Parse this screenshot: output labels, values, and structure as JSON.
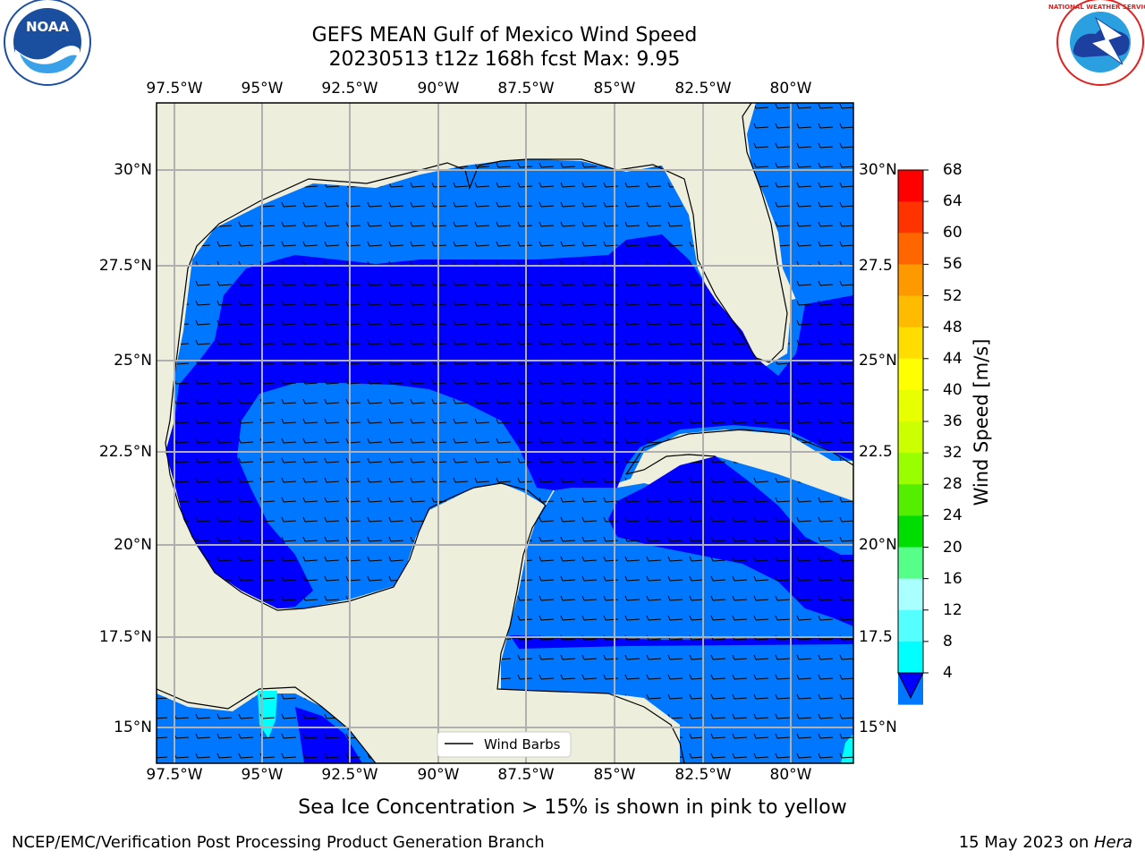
{
  "title_line1": "GEFS MEAN Gulf of Mexico Wind Speed",
  "title_line2": "20230513 t12z 168h fcst   Max: 9.95",
  "lon_labels": [
    "97.5°W",
    "95°W",
    "92.5°W",
    "90°W",
    "87.5°W",
    "85°W",
    "82.5°W",
    "80°W"
  ],
  "lat_labels": [
    "30°N",
    "27.5°N",
    "25°N",
    "22.5°N",
    "20°N",
    "17.5°N",
    "15°N"
  ],
  "lat_labels_right": [
    "30°N",
    "27.5",
    "25°N",
    "22.5",
    "20°N",
    "17.5",
    "15°N"
  ],
  "colorbar": {
    "title": "Wind Speed [m/s]",
    "ticks": [
      "68",
      "64",
      "60",
      "56",
      "52",
      "48",
      "44",
      "40",
      "36",
      "32",
      "28",
      "24",
      "20",
      "16",
      "12",
      "8",
      "4"
    ],
    "colors": [
      "#ff0000",
      "#ff3300",
      "#ff6600",
      "#ff9900",
      "#ffbb00",
      "#ffdd00",
      "#ffff00",
      "#e8ff00",
      "#ccff00",
      "#99ff00",
      "#55ee00",
      "#00dd00",
      "#55ff88",
      "#aaffff",
      "#55ffff",
      "#00ffff",
      "#0077ff"
    ],
    "extend_color": "#0000ff"
  },
  "legend_label": "Wind Barbs",
  "footnote": "Sea Ice Concentration > 15% is shown in pink to yellow",
  "credit": "NCEP/EMC/Verification Post Processing Product Generation Branch",
  "date_text": "15 May 2023 on ",
  "date_host": "Hera",
  "logo_left_text": "NOAA",
  "logo_right_text": "NATIONAL WEATHER SERVICE",
  "colors": {
    "land": "#eeeedd",
    "wind_4_8": "#0077ff",
    "wind_under_4": "#0000ff",
    "wind_8_12": "#00ffff",
    "grid": "#b0b0b0"
  }
}
